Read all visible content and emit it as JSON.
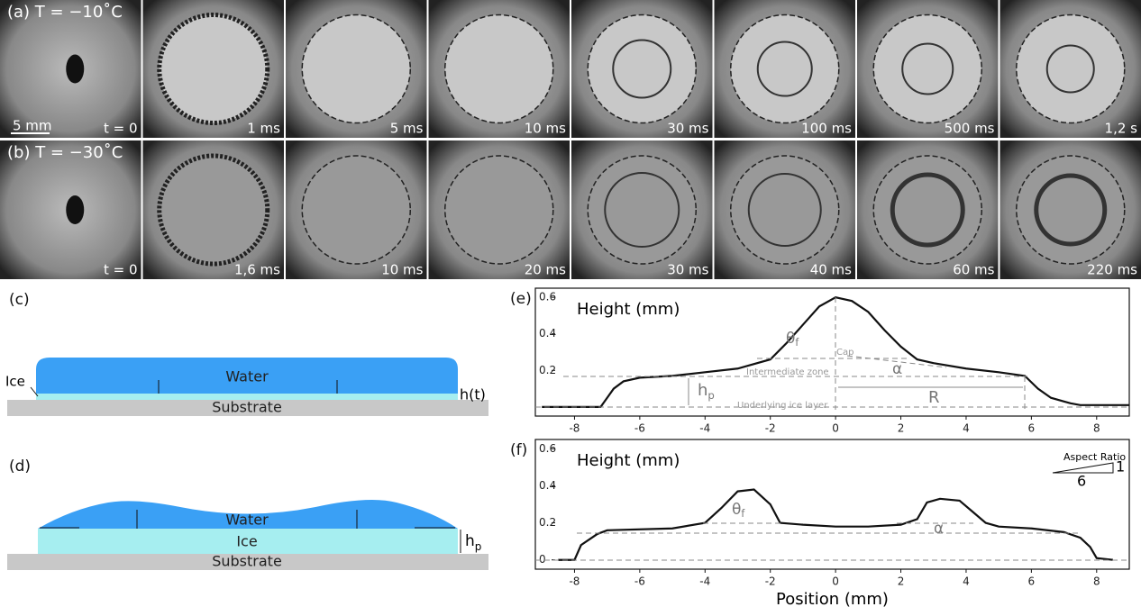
{
  "photo_rows": [
    {
      "label": "(a) T = −10˚C",
      "scale_bar": "5 mm",
      "times": [
        "t = 0",
        "1 ms",
        "5 ms",
        "10 ms",
        "30 ms",
        "100 ms",
        "500 ms",
        "1,2 s"
      ]
    },
    {
      "label": "(b) T = −30˚C",
      "times": [
        "t = 0",
        "1,6 ms",
        "10 ms",
        "20 ms",
        "30 ms",
        "40 ms",
        "60 ms",
        "220 ms"
      ]
    }
  ],
  "diagrams": [
    {
      "label": "(c)",
      "water": "Water",
      "ice": "Ice",
      "substrate": "Substrate",
      "height": "h(t)"
    },
    {
      "label": "(d)",
      "water": "Water",
      "ice": "Ice",
      "substrate": "Substrate",
      "height": {
        "text": "h",
        "sub": "p"
      }
    }
  ],
  "chart_data": [
    {
      "type": "line",
      "label": "(e)",
      "ylabel": "Height (mm)",
      "color": "#111",
      "x": [
        -9,
        -7.2,
        -7,
        -6.8,
        -6.5,
        -6,
        -5,
        -4,
        -3,
        -2,
        -1.5,
        -1,
        -0.5,
        0,
        0.5,
        1,
        1.5,
        2,
        2.5,
        3,
        4,
        5,
        5.8,
        6.2,
        6.6,
        7,
        7.2,
        7.5,
        9
      ],
      "values": [
        0,
        0,
        0.05,
        0.1,
        0.14,
        0.16,
        0.17,
        0.19,
        0.21,
        0.26,
        0.35,
        0.45,
        0.55,
        0.6,
        0.58,
        0.52,
        0.42,
        0.33,
        0.26,
        0.24,
        0.21,
        0.19,
        0.17,
        0.1,
        0.05,
        0.03,
        0.02,
        0.01,
        0.01
      ],
      "xlim": [
        -9.2,
        9
      ],
      "ylim": [
        -0.05,
        0.65
      ],
      "xticks": [
        -8,
        -6,
        -4,
        -2,
        0,
        2,
        4,
        6,
        8
      ],
      "yticks": [
        0.2,
        0.4,
        0.6
      ],
      "annotations": {
        "theta": {
          "text": "θ",
          "sub": "f"
        },
        "cap": "Cap",
        "intermediate": "Intermediate zone",
        "alpha": "α",
        "hp": {
          "text": "h",
          "sub": "p"
        },
        "R": "R",
        "underlying": "Underlying ice layer"
      }
    },
    {
      "type": "line",
      "label": "(f)",
      "ylabel": "Height (mm)",
      "xlabel": "Position (mm)",
      "color": "#111",
      "x": [
        -8.5,
        -8,
        -7.8,
        -7.3,
        -7,
        -5,
        -4,
        -3.5,
        -3,
        -2.5,
        -2,
        -1.7,
        -1,
        0,
        1,
        2,
        2.5,
        2.8,
        3.2,
        3.8,
        4.2,
        4.6,
        5,
        6,
        7,
        7.5,
        7.8,
        8,
        8.5
      ],
      "values": [
        0,
        0,
        0.08,
        0.14,
        0.16,
        0.17,
        0.2,
        0.28,
        0.37,
        0.38,
        0.3,
        0.2,
        0.19,
        0.18,
        0.18,
        0.19,
        0.22,
        0.31,
        0.33,
        0.32,
        0.26,
        0.2,
        0.18,
        0.17,
        0.15,
        0.12,
        0.07,
        0.01,
        0
      ],
      "xlim": [
        -9.2,
        9
      ],
      "ylim": [
        -0.05,
        0.65
      ],
      "xticks": [
        -8,
        -6,
        -4,
        -2,
        0,
        2,
        4,
        6,
        8
      ],
      "yticks": [
        0,
        0.2,
        0.4,
        0.6
      ],
      "annotations": {
        "theta": {
          "text": "θ",
          "sub": "f"
        },
        "alpha": "α",
        "aspect": "Aspect Ratio",
        "aspect_h": "1",
        "aspect_w": "6"
      }
    }
  ]
}
